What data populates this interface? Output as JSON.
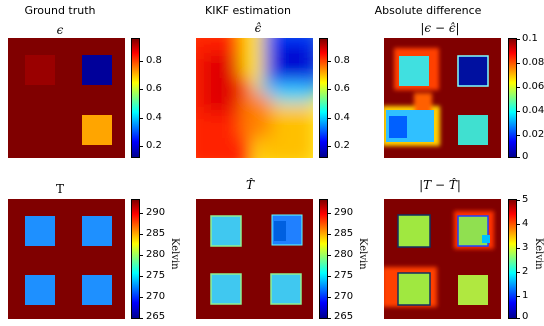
{
  "figure": {
    "column_titles": [
      "Ground truth",
      "KIKF estimation",
      "Absolute difference"
    ],
    "row1_titles": [
      "ϵ",
      "ϵ̂",
      "|ϵ − ϵ̂|"
    ],
    "row2_titles": [
      "T",
      "T̂",
      "|T − T̂|"
    ],
    "kelvin_label": "Kelvin"
  },
  "colors": {
    "jet": [
      "#00008f",
      "#0000ff",
      "#00ffff",
      "#ffff00",
      "#ff0000",
      "#800000"
    ],
    "dark_red": "#800000"
  },
  "chart_data": [
    {
      "type": "heatmap",
      "title": "ϵ",
      "group": "Ground truth",
      "colorbar": {
        "min": 0.1,
        "max": 0.95,
        "ticks": [
          "0.8",
          "0.6",
          "0.4",
          "0.2"
        ],
        "tick_values": [
          0.8,
          0.6,
          0.4,
          0.2
        ]
      },
      "background_value": 0.95,
      "patches": [
        {
          "quadrant": "top-left",
          "value": 0.92
        },
        {
          "quadrant": "top-right",
          "value": 0.12
        },
        {
          "quadrant": "bottom-right",
          "value": 0.55
        }
      ]
    },
    {
      "type": "heatmap",
      "title": "ϵ̂",
      "group": "KIKF estimation",
      "colorbar": {
        "min": 0.1,
        "max": 0.95,
        "ticks": [
          "0.8",
          "0.6",
          "0.4",
          "0.2"
        ],
        "tick_values": [
          0.8,
          0.6,
          0.4,
          0.2
        ]
      },
      "description_regions": [
        "smooth field: red left, blue top-right, yellow/orange bottom-right"
      ]
    },
    {
      "type": "heatmap",
      "title": "|ϵ − ϵ̂|",
      "group": "Absolute difference",
      "colorbar": {
        "min": 0,
        "max": 0.1,
        "ticks": [
          "0.1",
          "0.08",
          "0.06",
          "0.04",
          "0.02",
          "0"
        ],
        "tick_values": [
          0.1,
          0.08,
          0.06,
          0.04,
          0.02,
          0
        ]
      }
    },
    {
      "type": "heatmap",
      "title": "T",
      "group": "Ground truth",
      "colorbar": {
        "min": 265,
        "max": 293,
        "unit": "Kelvin",
        "ticks": [
          "290",
          "285",
          "280",
          "275",
          "270",
          "265"
        ],
        "tick_values": [
          290,
          285,
          280,
          275,
          270,
          265
        ]
      },
      "background_value": 293,
      "patches": [
        {
          "quadrant": "top-left",
          "value": 273
        },
        {
          "quadrant": "top-right",
          "value": 273
        },
        {
          "quadrant": "bottom-left",
          "value": 273
        },
        {
          "quadrant": "bottom-right",
          "value": 273
        }
      ]
    },
    {
      "type": "heatmap",
      "title": "T̂",
      "group": "KIKF estimation",
      "colorbar": {
        "min": 265,
        "max": 293,
        "unit": "Kelvin",
        "ticks": [
          "290",
          "285",
          "280",
          "275",
          "270",
          "265"
        ],
        "tick_values": [
          290,
          285,
          280,
          275,
          270,
          265
        ]
      }
    },
    {
      "type": "heatmap",
      "title": "|T − T̂|",
      "group": "Absolute difference",
      "colorbar": {
        "min": 0,
        "max": 5,
        "unit": "Kelvin",
        "ticks": [
          "5",
          "4",
          "3",
          "2",
          "1",
          "0"
        ],
        "tick_values": [
          5,
          4,
          3,
          2,
          1,
          0
        ]
      }
    }
  ]
}
